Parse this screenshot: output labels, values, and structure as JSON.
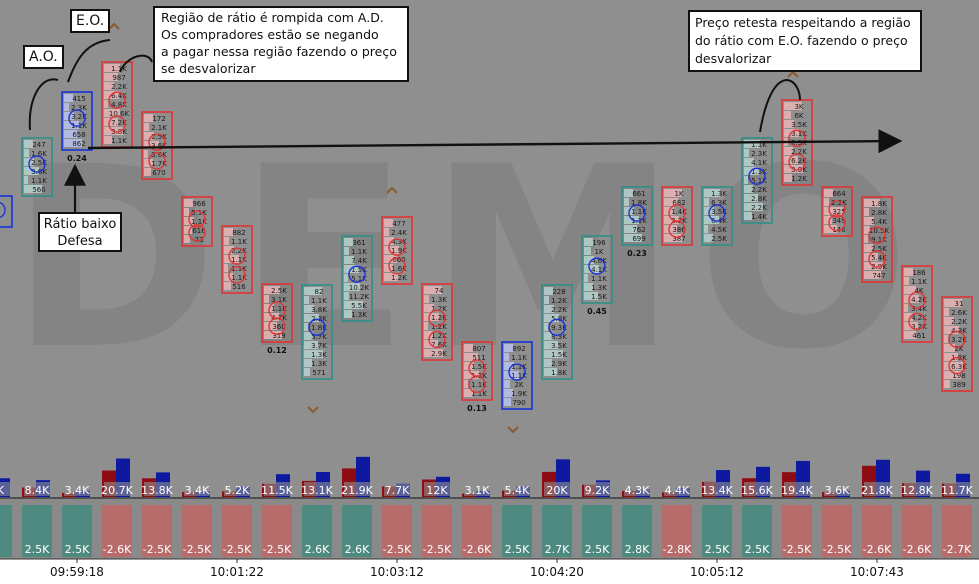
{
  "chart_data": {
    "type": "footprint",
    "watermark": "DEMO",
    "candles": [
      {
        "cells": [
          "",
          "",
          ""
        ],
        "box": "blue"
      },
      {
        "cells": [
          "247",
          "1.6K",
          "2.5K",
          "3.6K",
          "1.1K",
          "560"
        ],
        "box": "green",
        "label": ""
      },
      {
        "cells": [
          "415",
          "2.3K",
          "3.2K",
          "1.1K",
          "658",
          "862"
        ],
        "box": "blue",
        "label": "0.24"
      },
      {
        "cells": [
          "1.1K",
          "987",
          "2.2K",
          "6.4K",
          "4.8K",
          "10.6K",
          "7.2K",
          "3.8K",
          "1.1K"
        ],
        "box": "red",
        "label": ""
      },
      {
        "cells": [
          "172",
          "2.1K",
          "2.5K",
          "3.6K",
          "3.6K",
          "1.7K",
          "670"
        ],
        "box": "red",
        "label": ""
      },
      {
        "cells": [
          "966",
          "5.1K",
          "1.1K",
          "616",
          "73"
        ],
        "box": "red",
        "label": ""
      },
      {
        "cells": [
          "882",
          "1.1K",
          "2.2K",
          "1.1K",
          "1.1K",
          "1.1K",
          "516"
        ],
        "box": "red",
        "label": ""
      },
      {
        "cells": [
          "2.5K",
          "3.1K",
          "1.1K",
          "4.7K",
          "360",
          "319"
        ],
        "box": "red",
        "label": "0.12"
      },
      {
        "cells": [
          "82",
          "1.1K",
          "3.8K",
          "2.3K",
          "1.8K",
          "5.7K",
          "3.7K",
          "1.3K",
          "1.3K",
          "571"
        ],
        "box": "green",
        "label": ""
      },
      {
        "cells": [
          "361",
          "1.1K",
          "7.4K",
          "1.5K",
          "5.1K",
          "10.2K",
          "11.2K",
          "5.5K",
          "1.3K"
        ],
        "box": "green",
        "label": ""
      },
      {
        "cells": [
          "477",
          "2.4K",
          "4.3K",
          "1.9K",
          "660",
          "1.6K",
          "1.2K"
        ],
        "box": "red",
        "label": ""
      },
      {
        "cells": [
          "74",
          "1.3K",
          "1.2K",
          "1.2K",
          "1.2K",
          "1.2K",
          "7.6K",
          "2.9K"
        ],
        "box": "red",
        "label": ""
      },
      {
        "cells": [
          "807",
          "511",
          "1.5K",
          "1.3K",
          "1.1K",
          "1.1K"
        ],
        "box": "red",
        "label": "0.13"
      },
      {
        "cells": [
          "892",
          "1.1K",
          "1.1K",
          "1.1K",
          "2K",
          "1.9K",
          "790"
        ],
        "box": "blue",
        "label": ""
      },
      {
        "cells": [
          "228",
          "1.2K",
          "2.2K",
          "5.8K",
          "9.3K",
          "8.3K",
          "3.5K",
          "1.5K",
          "2.9K",
          "1.8K"
        ],
        "box": "green",
        "label": ""
      },
      {
        "cells": [
          "196",
          "1K",
          "4.6K",
          "4.1K",
          "1.1K",
          "1.3K",
          "1.5K"
        ],
        "box": "green",
        "label": "0.45"
      },
      {
        "cells": [
          "661",
          "1.8K",
          "1.1K",
          "1.1K",
          "762",
          "699"
        ],
        "box": "green",
        "label": "0.23"
      },
      {
        "cells": [
          "1K",
          "682",
          "1.4K",
          "2.2K",
          "386",
          "387"
        ],
        "box": "red",
        "label": ""
      },
      {
        "cells": [
          "1.3K",
          "6.3K",
          "3.5K",
          "6.4K",
          "4.5K",
          "2.5K"
        ],
        "box": "green",
        "label": ""
      },
      {
        "cells": [
          "1.1K",
          "2.3K",
          "4.1K",
          "1.3K",
          "5.1K",
          "2.2K",
          "2.8K",
          "2.2K",
          "1.4K"
        ],
        "box": "green",
        "label": ""
      },
      {
        "cells": [
          "3K",
          "6K",
          "3.5K",
          "3.1K",
          "2.3K",
          "2.2K",
          "6.2K",
          "3.9K",
          "1.2K"
        ],
        "box": "red",
        "label": ""
      },
      {
        "cells": [
          "664",
          "2.2K",
          "325",
          "349",
          "146"
        ],
        "box": "red",
        "label": ""
      },
      {
        "cells": [
          "1.8K",
          "2.8K",
          "5.4K",
          "10.5K",
          "9.1K",
          "2.5K",
          "5.4K",
          "2.9K",
          "747"
        ],
        "box": "red",
        "label": ""
      },
      {
        "cells": [
          "186",
          "1.1K",
          "4K",
          "4.2K",
          "3.4K",
          "4.2K",
          "3.2K",
          "461"
        ],
        "box": "red",
        "label": ""
      },
      {
        "cells": [
          "31",
          "2.6K",
          "2.2K",
          "4.3K",
          "3.2K",
          "2K",
          "1.8K",
          "6.3K",
          "198",
          "389"
        ],
        "box": "red",
        "label": ""
      }
    ],
    "volume_labels": [
      "9K",
      "8.4K",
      "3.4K",
      "20.7K",
      "13.8K",
      "3.4K",
      "5.2K",
      "11.5K",
      "13.1K",
      "21.9K",
      "7.7K",
      "12K",
      "3.1K",
      "5.4K",
      "20K",
      "9.2K",
      "4.3K",
      "4.4K",
      "13.4K",
      "15.6K",
      "19.4K",
      "3.6K",
      "21.8K",
      "12.8K",
      "11.7K"
    ],
    "delta_labels": [
      "",
      "2.5K",
      "2.5K",
      "-2.6K",
      "-2.5K",
      "-2.5K",
      "-2.5K",
      "-2.5K",
      "2.6K",
      "2.6K",
      "-2.5K",
      "-2.5K",
      "-2.6K",
      "2.5K",
      "2.7K",
      "2.5K",
      "2.8K",
      "-2.8K",
      "2.5K",
      "2.5K",
      "-2.5K",
      "-2.5K",
      "-2.6K",
      "-2.6K",
      "-2.7K"
    ],
    "time_labels": [
      "09:59:18",
      "10:01:22",
      "10:03:12",
      "10:04:20",
      "10:05:12",
      "10:07:43"
    ],
    "colors": {
      "bull": "#0d1aa0",
      "bear": "#8e0d14",
      "delta_pos": "#4f8a80",
      "delta_neg": "#b86b6b",
      "box_green": "#2e8f88",
      "box_red": "#e03535",
      "box_blue": "#1a33d6"
    }
  },
  "annotations": {
    "tag_ad": "A.O.",
    "tag_eo": "E.O.",
    "ratio_low": [
      "Rátio baixo",
      "Defesa"
    ],
    "note_left": [
      "Região de rátio é rompida com A.D.",
      "Os compradores estão se negando",
      "a pagar nessa região fazendo o preço",
      "se desvalorizar"
    ],
    "note_right": [
      "Preço retesta respeitando a região",
      "do rátio com E.O. fazendo o preço",
      "desvalorizar"
    ]
  }
}
